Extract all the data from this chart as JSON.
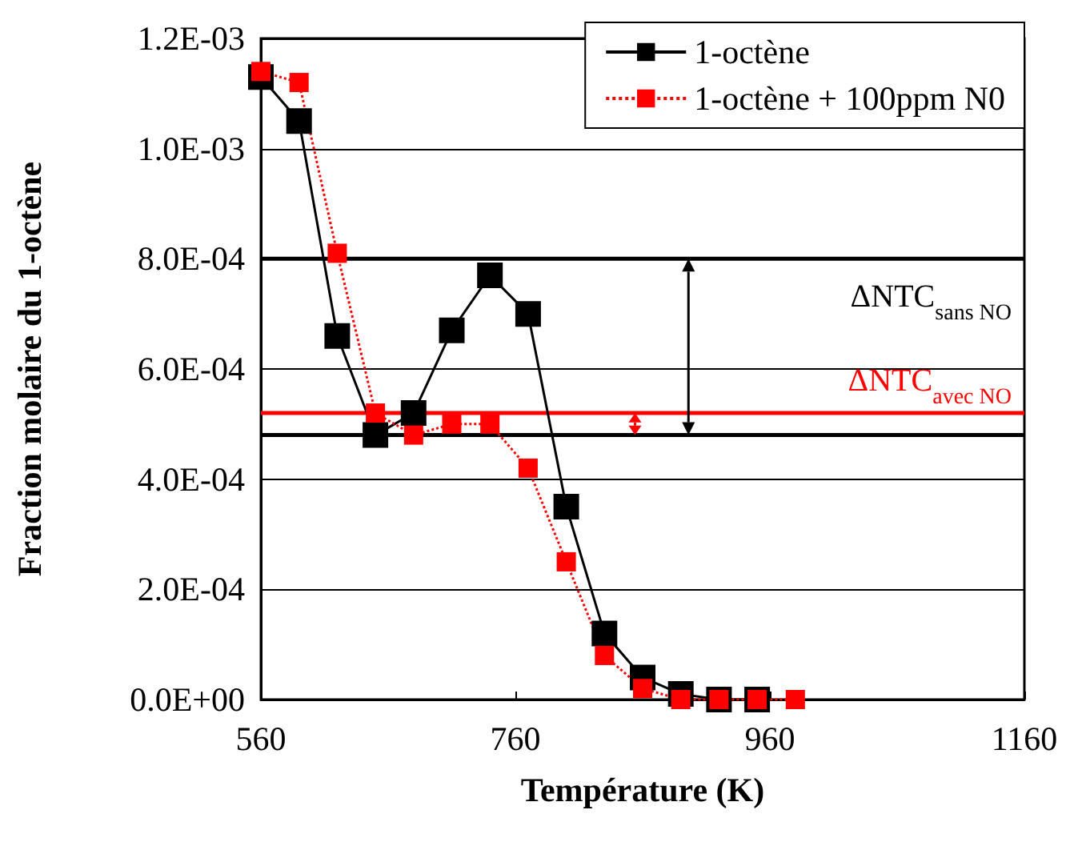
{
  "chart_data": {
    "type": "line",
    "xlabel": "Température (K)",
    "ylabel": "Fraction molaire du 1-octène",
    "xlim": [
      560,
      1160
    ],
    "xticks": [
      560,
      760,
      960,
      1160
    ],
    "ylim": [
      0,
      0.0012
    ],
    "yticks": [
      {
        "value": 0,
        "label": "0.0E+00"
      },
      {
        "value": 0.0002,
        "label": "2.0E-04"
      },
      {
        "value": 0.0004,
        "label": "4.0E-04"
      },
      {
        "value": 0.0006,
        "label": "6.0E-04"
      },
      {
        "value": 0.0008,
        "label": "8.0E-04"
      },
      {
        "value": 0.001,
        "label": "1.0E-03"
      },
      {
        "value": 0.0012,
        "label": "1.2E-03"
      }
    ],
    "grid": "y",
    "legend": "top right",
    "marker": "square",
    "series": [
      {
        "name": "1-octène",
        "color": "#000000",
        "line_style": "solid",
        "x": [
          560,
          590,
          620,
          650,
          680,
          710,
          740,
          770,
          800,
          830,
          860,
          890,
          920,
          950
        ],
        "values": [
          0.00113,
          0.00105,
          0.00066,
          0.00048,
          0.00052,
          0.00067,
          0.00077,
          0.0007,
          0.00035,
          0.00012,
          4e-05,
          1e-05,
          0,
          0
        ]
      },
      {
        "name": "1-octène + 100ppm N0",
        "color": "#ff0000",
        "line_style": "dotted",
        "x": [
          560,
          590,
          620,
          650,
          680,
          710,
          740,
          770,
          800,
          830,
          860,
          890,
          920,
          950,
          980
        ],
        "values": [
          0.00114,
          0.00112,
          0.00081,
          0.00052,
          0.00048,
          0.0005,
          0.0005,
          0.00042,
          0.00025,
          8e-05,
          2e-05,
          0,
          0,
          0,
          0
        ]
      }
    ],
    "ref_lines": [
      {
        "axis": "y",
        "value": 0.0008,
        "label": "ΔNTC$_{sans NO}$",
        "color": "#000000"
      },
      {
        "axis": "y",
        "value": 0.00048,
        "label": null,
        "color": "#000000"
      },
      {
        "axis": "y",
        "value": 0.00052,
        "label": "ΔNTC$_{avec NO}$",
        "color": "#ff0000"
      }
    ]
  }
}
